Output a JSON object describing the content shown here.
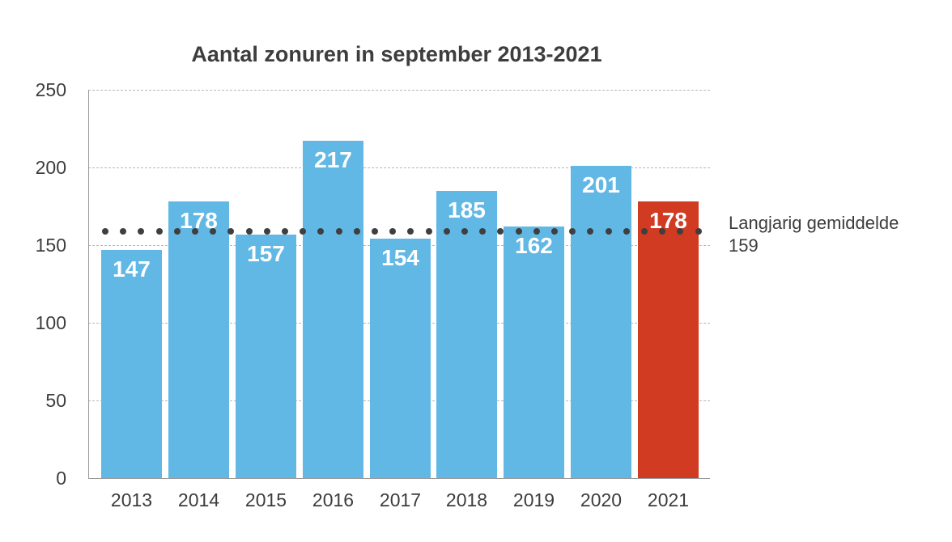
{
  "chart_data": {
    "type": "bar",
    "title": "Aantal zonuren in september 2013-2021",
    "xlabel": "",
    "ylabel": "",
    "categories": [
      "2013",
      "2014",
      "2015",
      "2016",
      "2017",
      "2018",
      "2019",
      "2020",
      "2021"
    ],
    "values": [
      147,
      178,
      157,
      217,
      154,
      185,
      162,
      201,
      178
    ],
    "bar_colors": [
      "#62b8e5",
      "#62b8e5",
      "#62b8e5",
      "#62b8e5",
      "#62b8e5",
      "#62b8e5",
      "#62b8e5",
      "#62b8e5",
      "#d13b22"
    ],
    "ylim": [
      0,
      250
    ],
    "yticks": [
      0,
      50,
      100,
      150,
      200,
      250
    ],
    "grid": true,
    "reference_line": {
      "label": "Langjarig gemiddelde",
      "value": 159,
      "style": "dotted",
      "color": "#3f3f3f"
    },
    "data_labels": true,
    "legend": null
  },
  "title": "Aantal zonuren in september 2013-2021",
  "y_ticks": [
    "250",
    "200",
    "150",
    "100",
    "50",
    "0"
  ],
  "x_ticks": [
    "2013",
    "2014",
    "2015",
    "2016",
    "2017",
    "2018",
    "2019",
    "2020",
    "2021"
  ],
  "bar_labels": [
    "147",
    "178",
    "157",
    "217",
    "154",
    "185",
    "162",
    "201",
    "178"
  ],
  "average": {
    "label_line1": "Langjarig gemiddelde",
    "label_line2": "159"
  },
  "colors": {
    "bar": "#62b8e5",
    "highlight": "#d13b22",
    "text": "#3d3d3d",
    "avg_dots": "#3f3f3f"
  }
}
